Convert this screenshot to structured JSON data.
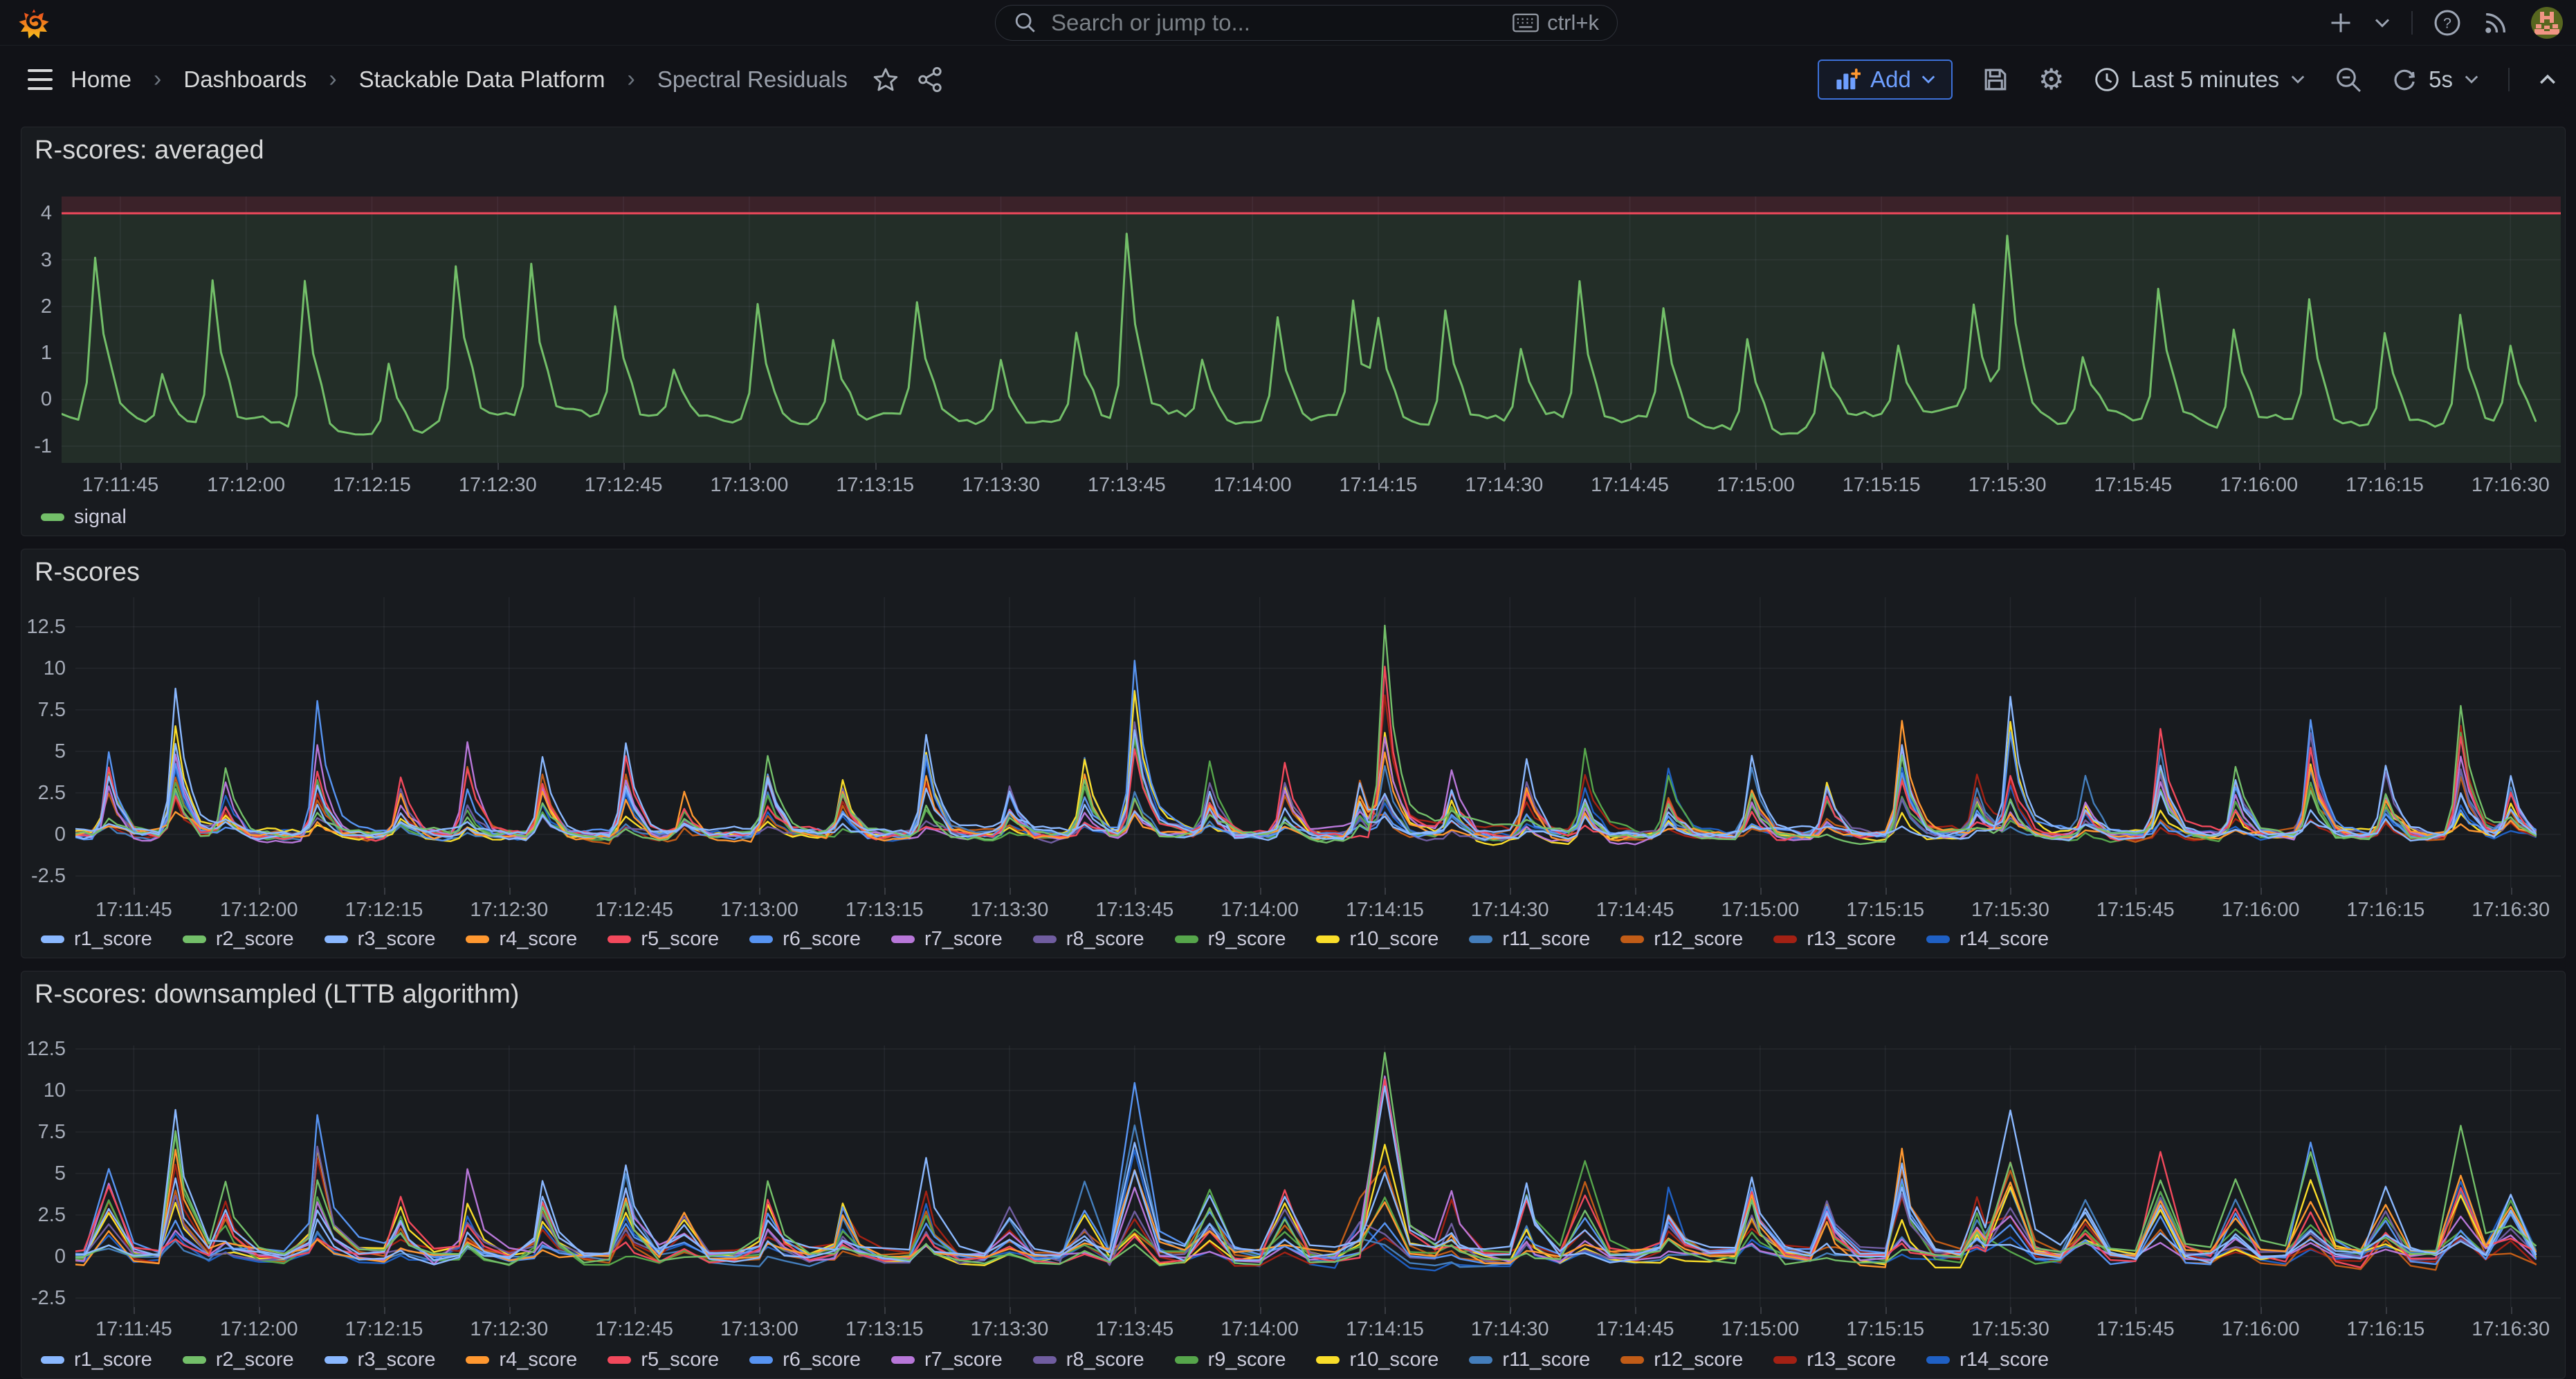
{
  "topbar": {
    "search_placeholder": "Search or jump to...",
    "search_shortcut": "ctrl+k"
  },
  "breadcrumbs": {
    "items": [
      "Home",
      "Dashboards",
      "Stackable Data Platform",
      "Spectral Residuals"
    ]
  },
  "toolbar": {
    "add_label": "Add",
    "time_range": "Last 5 minutes",
    "refresh_interval": "5s"
  },
  "colors": {
    "page_bg": "#111217",
    "panel_bg": "#181b1f",
    "accent_blue": "#3d71d9",
    "threshold_red": "#F2495C",
    "signal_green": "#73BF69"
  },
  "chart_data": [
    {
      "type": "line",
      "title": "R-scores: averaged",
      "x_tick_labels": [
        "17:11:45",
        "17:12:00",
        "17:12:15",
        "17:12:30",
        "17:12:45",
        "17:13:00",
        "17:13:15",
        "17:13:30",
        "17:13:45",
        "17:14:00",
        "17:14:15",
        "17:14:30",
        "17:14:45",
        "17:15:00",
        "17:15:15",
        "17:15:30",
        "17:15:45",
        "17:16:00",
        "17:16:15",
        "17:16:30"
      ],
      "x_tick_seconds": [
        12,
        27,
        42,
        57,
        72,
        87,
        102,
        117,
        132,
        147,
        162,
        177,
        192,
        207,
        222,
        237,
        252,
        267,
        282,
        297
      ],
      "x_window_seconds": [
        5,
        303
      ],
      "y_tick_labels": [
        "4",
        "3",
        "2",
        "1",
        "0",
        "-1"
      ],
      "y_ticks": [
        4,
        3,
        2,
        1,
        0,
        -1
      ],
      "ylim": [
        -1.36,
        4.36
      ],
      "threshold": {
        "value": 4,
        "line_color": "#F2495C",
        "above_fill": "rgba(242,73,92,0.16)",
        "below_fill": "rgba(115,191,105,0.12)"
      },
      "sample_step": 1,
      "noise": 0.2,
      "baseline": -0.35,
      "shoulder": 0.2,
      "sharp": 0.88,
      "line_width": 3,
      "seed": 11,
      "series": [
        {
          "name": "signal",
          "color": "#73BF69"
        }
      ],
      "spikes": [
        [
          9,
          3.1
        ],
        [
          17,
          1.0
        ],
        [
          23,
          2.95
        ],
        [
          34,
          2.9
        ],
        [
          44,
          1.4
        ],
        [
          52,
          2.95
        ],
        [
          61,
          3.0
        ],
        [
          71,
          2.1
        ],
        [
          78,
          1.0
        ],
        [
          88,
          2.2
        ],
        [
          97,
          1.5
        ],
        [
          107,
          2.2
        ],
        [
          117,
          1.3
        ],
        [
          126,
          1.8
        ],
        [
          132,
          3.7
        ],
        [
          141,
          1.2
        ],
        [
          150,
          2.0
        ],
        [
          159,
          2.4
        ],
        [
          162,
          1.9
        ],
        [
          170,
          2.2
        ],
        [
          179,
          1.5
        ],
        [
          186,
          2.8
        ],
        [
          196,
          2.2
        ],
        [
          206,
          1.8
        ],
        [
          215,
          1.5
        ],
        [
          224,
          1.3
        ],
        [
          233,
          2.1
        ],
        [
          237,
          3.5
        ],
        [
          246,
          1.2
        ],
        [
          255,
          2.6
        ],
        [
          264,
          1.9
        ],
        [
          273,
          2.3
        ],
        [
          282,
          1.8
        ],
        [
          291,
          2.2
        ],
        [
          297,
          1.5
        ]
      ]
    },
    {
      "type": "line",
      "title": "R-scores",
      "x_tick_labels": [
        "17:11:45",
        "17:12:00",
        "17:12:15",
        "17:12:30",
        "17:12:45",
        "17:13:00",
        "17:13:15",
        "17:13:30",
        "17:13:45",
        "17:14:00",
        "17:14:15",
        "17:14:30",
        "17:14:45",
        "17:15:00",
        "17:15:15",
        "17:15:30",
        "17:15:45",
        "17:16:00",
        "17:16:15",
        "17:16:30"
      ],
      "x_tick_seconds": [
        12,
        27,
        42,
        57,
        72,
        87,
        102,
        117,
        132,
        147,
        162,
        177,
        192,
        207,
        222,
        237,
        252,
        267,
        282,
        297
      ],
      "x_window_seconds": [
        5,
        303
      ],
      "y_tick_labels": [
        "12.5",
        "10",
        "7.5",
        "5",
        "2.5",
        "0",
        "-2.5"
      ],
      "y_ticks": [
        12.5,
        10,
        7.5,
        5,
        2.5,
        0,
        -2.5
      ],
      "ylim": [
        -3.21,
        14.28
      ],
      "sample_step": 1,
      "noise": 0.35,
      "baseline": 0,
      "shoulder": 0.22,
      "sharp": 0.78,
      "line_width": 2.4,
      "seed": 23,
      "series": [
        {
          "name": "r1_score",
          "color": "#8AB8FF"
        },
        {
          "name": "r2_score",
          "color": "#73BF69"
        },
        {
          "name": "r3_score",
          "color": "#8AB8FF"
        },
        {
          "name": "r4_score",
          "color": "#FF9830"
        },
        {
          "name": "r5_score",
          "color": "#F2495C"
        },
        {
          "name": "r6_score",
          "color": "#5794F2"
        },
        {
          "name": "r7_score",
          "color": "#B877D9"
        },
        {
          "name": "r8_score",
          "color": "#705DA0"
        },
        {
          "name": "r9_score",
          "color": "#56A64B"
        },
        {
          "name": "r10_score",
          "color": "#FADE2A"
        },
        {
          "name": "r11_score",
          "color": "#447EBC"
        },
        {
          "name": "r12_score",
          "color": "#C15C17"
        },
        {
          "name": "r13_score",
          "color": "#A32114"
        },
        {
          "name": "r14_score",
          "color": "#1F60C4"
        }
      ],
      "spikes": [
        [
          9,
          5.2,
          5
        ],
        [
          17,
          8.6,
          0
        ],
        [
          23,
          4.0,
          1
        ],
        [
          34,
          8.1,
          5
        ],
        [
          44,
          3.6,
          4
        ],
        [
          52,
          5.4,
          6
        ],
        [
          61,
          4.6,
          0
        ],
        [
          71,
          5.6,
          2
        ],
        [
          78,
          3.0,
          3
        ],
        [
          88,
          4.6,
          1
        ],
        [
          97,
          3.4,
          9
        ],
        [
          107,
          5.8,
          0
        ],
        [
          117,
          3.2,
          7
        ],
        [
          126,
          4.8,
          10
        ],
        [
          132,
          10.2,
          5
        ],
        [
          141,
          4.0,
          8
        ],
        [
          150,
          4.2,
          4
        ],
        [
          159,
          3.6,
          11
        ],
        [
          162,
          12.6,
          1
        ],
        [
          170,
          3.4,
          6
        ],
        [
          179,
          4.4,
          2
        ],
        [
          186,
          5.2,
          8
        ],
        [
          196,
          4.0,
          13
        ],
        [
          206,
          4.6,
          0
        ],
        [
          215,
          3.4,
          9
        ],
        [
          224,
          6.8,
          3
        ],
        [
          233,
          3.6,
          12
        ],
        [
          237,
          8.4,
          0
        ],
        [
          246,
          3.2,
          10
        ],
        [
          255,
          6.4,
          4
        ],
        [
          264,
          4.0,
          1
        ],
        [
          273,
          7.0,
          5
        ],
        [
          282,
          4.2,
          2
        ],
        [
          291,
          7.6,
          1
        ],
        [
          297,
          3.8,
          0
        ]
      ]
    },
    {
      "type": "line",
      "title": "R-scores: downsampled (LTTB algorithm)",
      "x_tick_labels": [
        "17:11:45",
        "17:12:00",
        "17:12:15",
        "17:12:30",
        "17:12:45",
        "17:13:00",
        "17:13:15",
        "17:13:30",
        "17:13:45",
        "17:14:00",
        "17:14:15",
        "17:14:30",
        "17:14:45",
        "17:15:00",
        "17:15:15",
        "17:15:30",
        "17:15:45",
        "17:16:00",
        "17:16:15",
        "17:16:30"
      ],
      "x_tick_seconds": [
        12,
        27,
        42,
        57,
        72,
        87,
        102,
        117,
        132,
        147,
        162,
        177,
        192,
        207,
        222,
        237,
        252,
        267,
        282,
        297
      ],
      "x_window_seconds": [
        5,
        303
      ],
      "y_tick_labels": [
        "12.5",
        "10",
        "7.5",
        "5",
        "2.5",
        "0",
        "-2.5"
      ],
      "y_ticks": [
        12.5,
        10,
        7.5,
        5,
        2.5,
        0,
        -2.5
      ],
      "ylim": [
        -3.04,
        12.71
      ],
      "sample_step": 3,
      "noise": 0.5,
      "baseline": 0,
      "shoulder": 0.22,
      "sharp": 0.78,
      "line_width": 2.4,
      "seed": 47,
      "spikes_from": 1,
      "series": [
        {
          "name": "r1_score",
          "color": "#8AB8FF"
        },
        {
          "name": "r2_score",
          "color": "#73BF69"
        },
        {
          "name": "r3_score",
          "color": "#8AB8FF"
        },
        {
          "name": "r4_score",
          "color": "#FF9830"
        },
        {
          "name": "r5_score",
          "color": "#F2495C"
        },
        {
          "name": "r6_score",
          "color": "#5794F2"
        },
        {
          "name": "r7_score",
          "color": "#B877D9"
        },
        {
          "name": "r8_score",
          "color": "#705DA0"
        },
        {
          "name": "r9_score",
          "color": "#56A64B"
        },
        {
          "name": "r10_score",
          "color": "#FADE2A"
        },
        {
          "name": "r11_score",
          "color": "#447EBC"
        },
        {
          "name": "r12_score",
          "color": "#C15C17"
        },
        {
          "name": "r13_score",
          "color": "#A32114"
        },
        {
          "name": "r14_score",
          "color": "#1F60C4"
        }
      ]
    }
  ]
}
